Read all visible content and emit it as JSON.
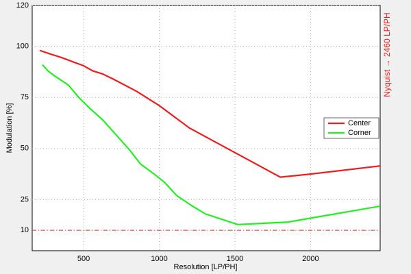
{
  "chart_data": {
    "type": "line",
    "x_label": "Resolution [LP/PH]",
    "y_label": "Modulation [%]",
    "annotation": "Nyquist → 2460 LP/PH",
    "annotation_color": "#e02020",
    "reference_line": {
      "value": 10,
      "color": "#e03030"
    },
    "xlim": [
      160,
      2460
    ],
    "ylim": [
      0,
      120
    ],
    "xticks": [
      500,
      1000,
      1500,
      2000
    ],
    "yticks": [
      10,
      25,
      50,
      75,
      100,
      120
    ],
    "grid": true,
    "legend": "right",
    "series": [
      {
        "name": "Center",
        "color": "#ee1c1c",
        "x": [
          210,
          290,
          355,
          445,
          500,
          560,
          625,
          695,
          760,
          850,
          1000,
          1200,
          1500,
          1800,
          2000,
          2460
        ],
        "values": [
          98,
          96,
          94.5,
          92,
          90.5,
          88,
          86.5,
          84,
          81.5,
          78,
          71,
          60,
          48,
          36,
          37.5,
          41.5
        ]
      },
      {
        "name": "Corner",
        "color": "#22ee22",
        "x": [
          228,
          264,
          309,
          400,
          468,
          536,
          626,
          717,
          807,
          875,
          966,
          1034,
          1115,
          1215,
          1305,
          1518,
          1849,
          2460
        ],
        "values": [
          91,
          88,
          85.5,
          81,
          75,
          70,
          64,
          56.5,
          49,
          42.5,
          37.5,
          33.5,
          27,
          22,
          18,
          12.8,
          14,
          21.8
        ]
      }
    ]
  }
}
